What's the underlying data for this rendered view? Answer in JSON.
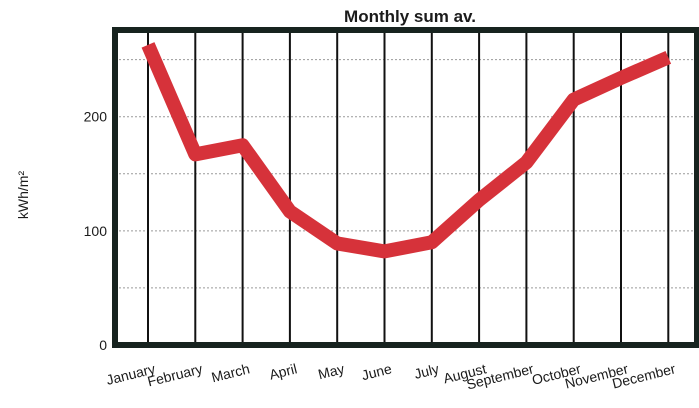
{
  "chart_data": {
    "type": "line",
    "title": "Monthly sum av.",
    "y_label": "kWh/m²",
    "categories": [
      "January",
      "February",
      "March",
      "April",
      "May",
      "June",
      "July",
      "August",
      "September",
      "October",
      "November",
      "December"
    ],
    "series": [
      {
        "name": "Monthly sum",
        "color": "#d6323a",
        "values": [
          263,
          167,
          175,
          117,
          89,
          82,
          90,
          127,
          160,
          215,
          234,
          252
        ]
      }
    ],
    "ylim": [
      0,
      276
    ],
    "yticks": [
      0,
      100,
      200
    ],
    "minor_yticks": [
      50,
      150,
      250
    ],
    "grid": true
  }
}
